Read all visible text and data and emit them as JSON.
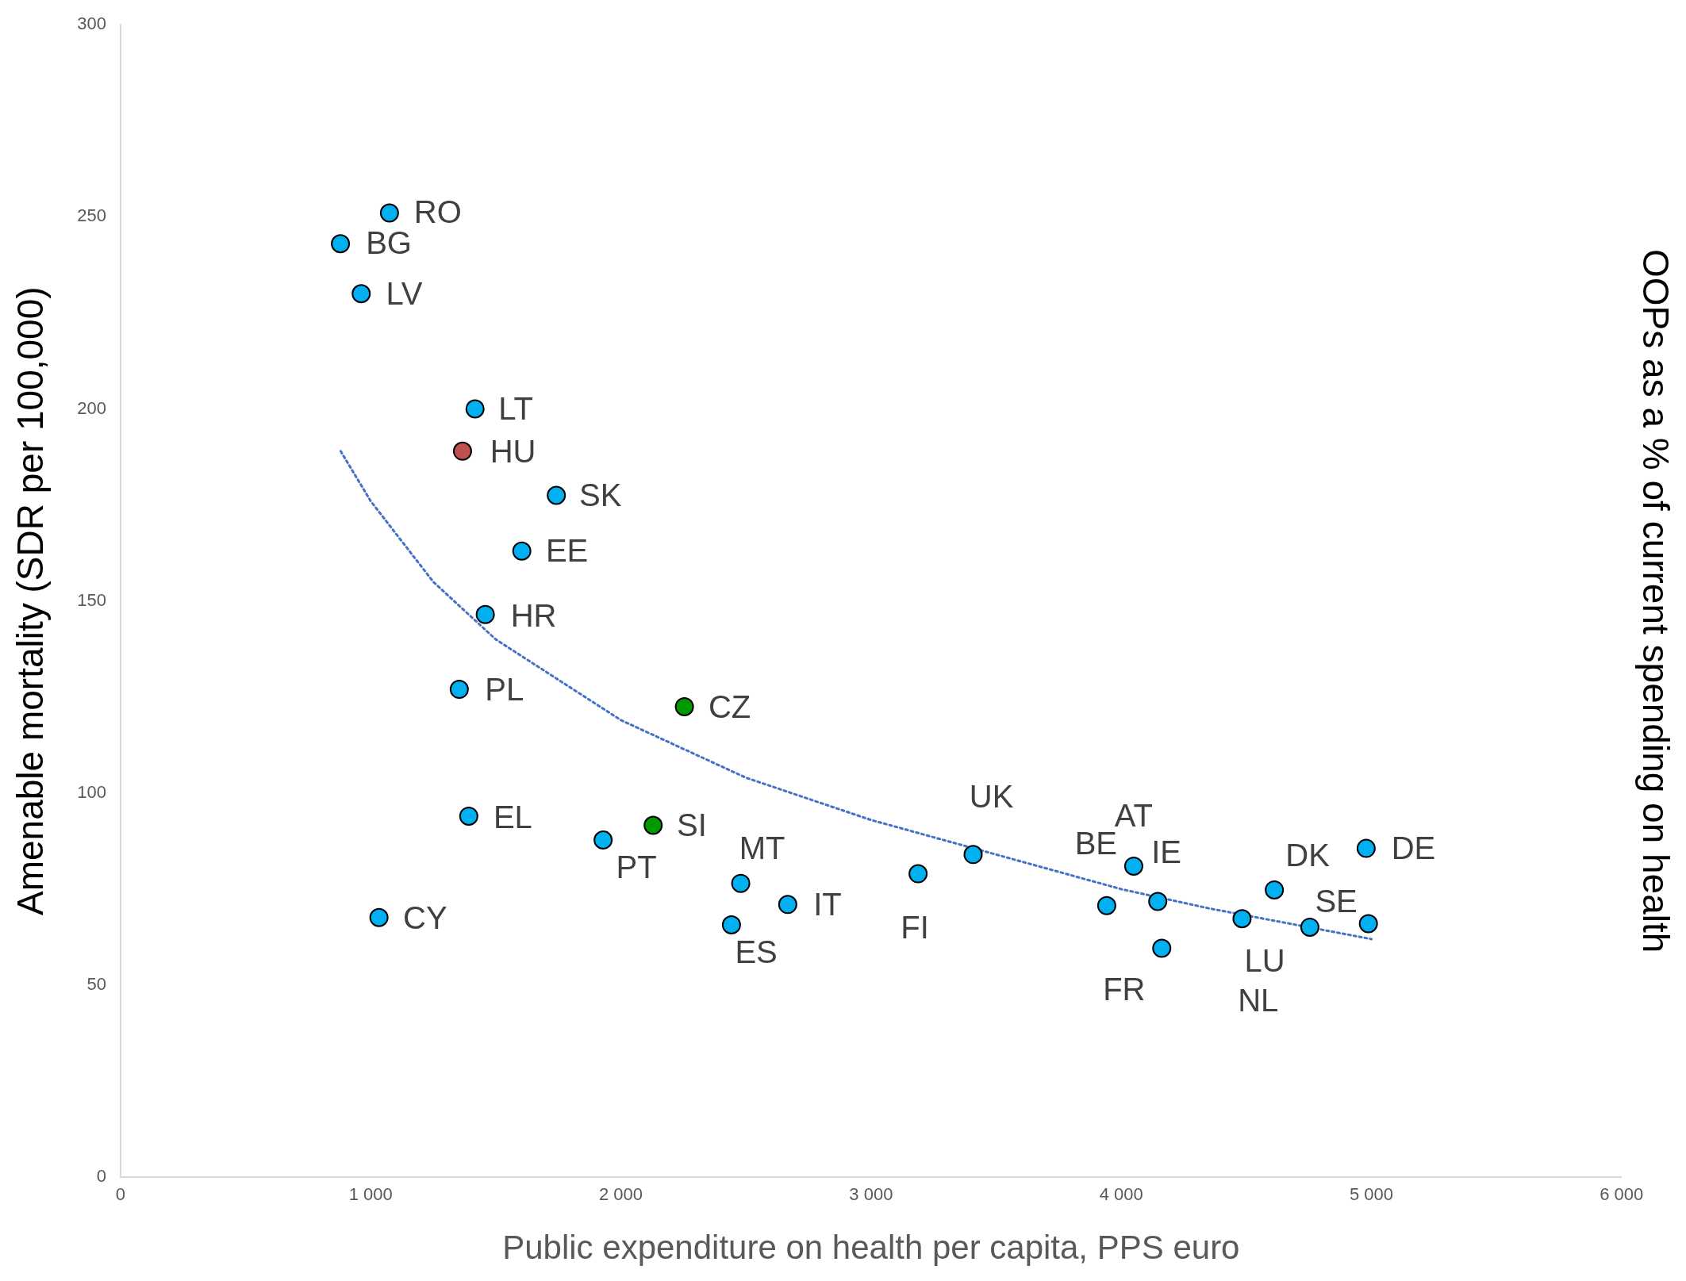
{
  "chart_data": {
    "type": "scatter",
    "xlabel": "Public expenditure on health per capita, PPS euro",
    "ylabel": "Amenable mortality (SDR per 100,000)",
    "y2label": "OOPs as a % of current spending on health",
    "xlim": [
      0,
      6000
    ],
    "xticks": [
      0,
      {
        "value": 1000,
        "label": "1 000"
      },
      {
        "value": 2000,
        "label": "2 000"
      },
      {
        "value": 3000,
        "label": "3 000"
      },
      {
        "value": 4000,
        "label": "4 000"
      },
      {
        "value": 5000,
        "label": "5 000"
      },
      {
        "value": 6000,
        "label": "6 000"
      }
    ],
    "ylim": [
      0,
      300
    ],
    "yticks": [
      0,
      50,
      100,
      150,
      200,
      250,
      300
    ],
    "grid": false,
    "legend": false,
    "series": [
      {
        "marker": "circle",
        "color": "#00b0f0",
        "x": [
          1075,
          879,
          962,
          1417,
          1367,
          1742,
          1604,
          1458,
          1354,
          2254,
          1392,
          2129,
          1929,
          2479,
          2667,
          2442,
          1033,
          3188,
          3408,
          3942,
          4050,
          4146,
          4162,
          4483,
          4612,
          4754,
          4988,
          4979
        ],
        "values": [
          251,
          243,
          230,
          200,
          189,
          177.5,
          163,
          146.5,
          127,
          122.5,
          94,
          91.6,
          87.8,
          76.5,
          71,
          65.7,
          67.6,
          79,
          84,
          70.7,
          81,
          71.8,
          59.6,
          67.3,
          74.8,
          65.1,
          66,
          85.6
        ],
        "colors": [
          "#00b0f0",
          "#00b0f0",
          "#00b0f0",
          "#00b0f0",
          "#c0504d",
          "#00b0f0",
          "#00b0f0",
          "#00b0f0",
          "#00b0f0",
          "#009900",
          "#00b0f0",
          "#009900",
          "#00b0f0",
          "#00b0f0",
          "#00b0f0",
          "#00b0f0",
          "#00b0f0",
          "#00b0f0",
          "#00b0f0",
          "#00b0f0",
          "#00b0f0",
          "#00b0f0",
          "#00b0f0",
          "#00b0f0",
          "#00b0f0",
          "#00b0f0",
          "#00b0f0",
          "#00b0f0"
        ],
        "value_labels": [
          "RO",
          "BG",
          "LV",
          "LT",
          "HU",
          "SK",
          "EE",
          "HR",
          "PL",
          "CZ",
          "EL",
          "SI",
          "PT",
          "MT",
          "IT",
          "ES",
          "CY",
          "FI",
          "UK",
          "BE",
          "AT",
          "IE",
          "FR",
          "NL",
          "DK",
          "LU",
          "SE",
          "DE"
        ]
      },
      {
        "type": "line",
        "marker": "none",
        "line_style": "dotted",
        "color": "#4472c4",
        "x": [
          880,
          1000,
          1250,
          1500,
          2000,
          2500,
          3000,
          3500,
          4000,
          4350,
          5000
        ],
        "values": [
          189,
          176,
          155,
          140,
          119,
          104,
          93,
          84,
          75,
          70,
          62
        ]
      }
    ]
  }
}
